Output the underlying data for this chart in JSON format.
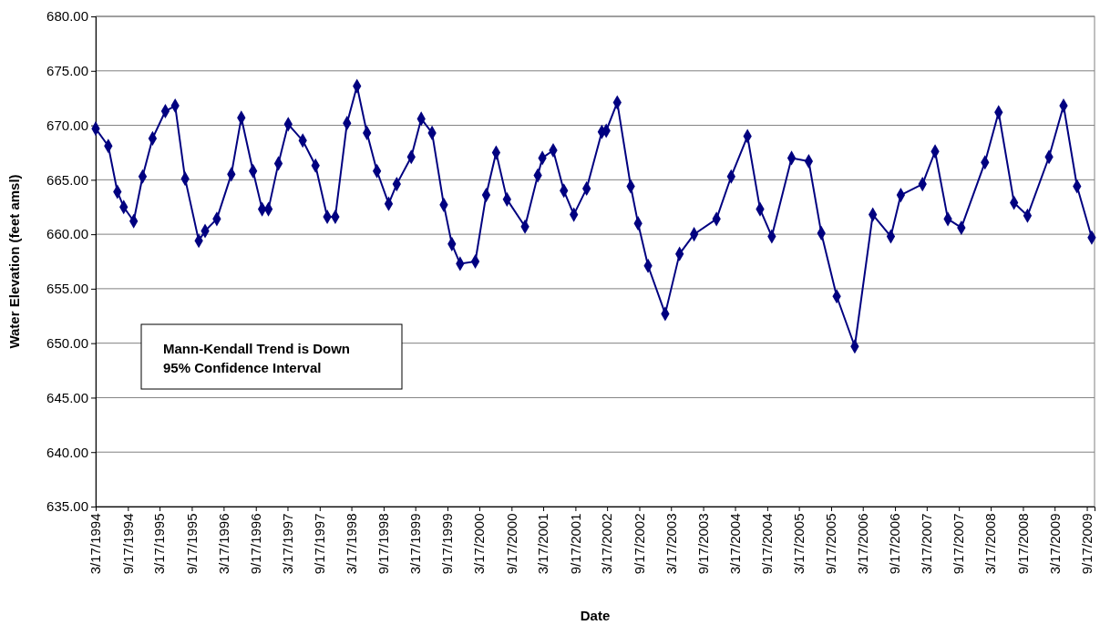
{
  "chart_data": {
    "type": "line",
    "xlabel": "Date",
    "ylabel": "Water Elevation (feet amsl)",
    "annotations": [
      "Mann-Kendall Trend is Down\n95% Confidence Interval"
    ],
    "x": [
      "1994-03-17",
      "1994-05-28",
      "1994-07-19",
      "1994-08-24",
      "1994-10-20",
      "1994-12-10",
      "1995-02-05",
      "1995-04-19",
      "1995-06-14",
      "1995-08-10",
      "1995-10-27",
      "1995-12-02",
      "1996-02-07",
      "1996-04-30",
      "1996-06-26",
      "1996-09-01",
      "1996-10-23",
      "1996-11-28",
      "1997-01-24",
      "1997-03-21",
      "1997-06-12",
      "1997-08-24",
      "1997-10-30",
      "1997-12-15",
      "1998-02-20",
      "1998-04-18",
      "1998-06-14",
      "1998-08-10",
      "1998-10-16",
      "1998-12-01",
      "1999-02-22",
      "1999-04-20",
      "1999-06-21",
      "1999-08-27",
      "1999-10-12",
      "1999-11-28",
      "2000-02-23",
      "2000-04-25",
      "2000-06-21",
      "2000-08-22",
      "2000-12-03",
      "2001-02-14",
      "2001-03-12",
      "2001-05-13",
      "2001-07-13",
      "2001-09-08",
      "2001-11-20",
      "2002-02-15",
      "2002-03-12",
      "2002-05-14",
      "2002-07-30",
      "2002-09-10",
      "2002-11-06",
      "2003-02-12",
      "2003-05-05",
      "2003-07-27",
      "2003-12-02",
      "2004-02-24",
      "2004-05-27",
      "2004-08-07",
      "2004-10-13",
      "2005-02-03",
      "2005-05-12",
      "2005-07-23",
      "2005-10-19",
      "2006-01-30",
      "2006-05-13",
      "2006-08-24",
      "2006-10-20",
      "2007-02-21",
      "2007-05-04",
      "2007-07-16",
      "2007-10-01",
      "2008-02-13",
      "2008-05-01",
      "2008-07-28",
      "2008-10-13",
      "2009-02-13",
      "2009-05-07",
      "2009-07-23",
      "2009-10-15"
    ],
    "series": [
      {
        "color": "#000080",
        "values": [
          669.7,
          668.1,
          663.9,
          662.5,
          661.2,
          665.3,
          668.8,
          671.3,
          671.8,
          665.1,
          659.4,
          660.3,
          661.4,
          665.5,
          670.7,
          665.8,
          662.3,
          662.3,
          666.5,
          670.1,
          668.6,
          666.3,
          661.6,
          661.6,
          670.2,
          673.6,
          669.3,
          665.8,
          662.8,
          664.6,
          667.1,
          670.6,
          669.3,
          662.7,
          659.1,
          657.3,
          657.5,
          663.6,
          667.5,
          663.2,
          660.7,
          665.4,
          667.0,
          667.7,
          664.0,
          661.8,
          664.2,
          669.4,
          669.5,
          672.1,
          664.4,
          661.0,
          657.1,
          652.7,
          658.2,
          660.0,
          661.4,
          665.3,
          669.0,
          662.3,
          659.8,
          667.0,
          666.7,
          660.1,
          654.3,
          649.7,
          661.8,
          659.8,
          663.6,
          664.6,
          667.6,
          661.4,
          660.6,
          666.6,
          671.2,
          662.9,
          661.7,
          667.1,
          671.8,
          664.4,
          659.7
        ]
      }
    ],
    "xlim": [
      "1994-03-17",
      "2009-10-31"
    ],
    "xticks": [
      {
        "value": "1994-03-17",
        "label": "3/17/1994"
      },
      {
        "value": "1994-09-17",
        "label": "9/17/1994"
      },
      {
        "value": "1995-03-17",
        "label": "3/17/1995"
      },
      {
        "value": "1995-09-17",
        "label": "9/17/1995"
      },
      {
        "value": "1996-03-17",
        "label": "3/17/1996"
      },
      {
        "value": "1996-09-17",
        "label": "9/17/1996"
      },
      {
        "value": "1997-03-17",
        "label": "3/17/1997"
      },
      {
        "value": "1997-09-17",
        "label": "9/17/1997"
      },
      {
        "value": "1998-03-17",
        "label": "3/17/1998"
      },
      {
        "value": "1998-09-17",
        "label": "9/17/1998"
      },
      {
        "value": "1999-03-17",
        "label": "3/17/1999"
      },
      {
        "value": "1999-09-17",
        "label": "9/17/1999"
      },
      {
        "value": "2000-03-17",
        "label": "3/17/2000"
      },
      {
        "value": "2000-09-17",
        "label": "9/17/2000"
      },
      {
        "value": "2001-03-17",
        "label": "3/17/2001"
      },
      {
        "value": "2001-09-17",
        "label": "9/17/2001"
      },
      {
        "value": "2002-03-17",
        "label": "3/17/2002"
      },
      {
        "value": "2002-09-17",
        "label": "9/17/2002"
      },
      {
        "value": "2003-03-17",
        "label": "3/17/2003"
      },
      {
        "value": "2003-09-17",
        "label": "9/17/2003"
      },
      {
        "value": "2004-03-17",
        "label": "3/17/2004"
      },
      {
        "value": "2004-09-17",
        "label": "9/17/2004"
      },
      {
        "value": "2005-03-17",
        "label": "3/17/2005"
      },
      {
        "value": "2005-09-17",
        "label": "9/17/2005"
      },
      {
        "value": "2006-03-17",
        "label": "3/17/2006"
      },
      {
        "value": "2006-09-17",
        "label": "9/17/2006"
      },
      {
        "value": "2007-03-17",
        "label": "3/17/2007"
      },
      {
        "value": "2007-09-17",
        "label": "9/17/2007"
      },
      {
        "value": "2008-03-17",
        "label": "3/17/2008"
      },
      {
        "value": "2008-09-17",
        "label": "9/17/2008"
      },
      {
        "value": "2009-03-17",
        "label": "3/17/2009"
      },
      {
        "value": "2009-09-17",
        "label": "9/17/2009"
      }
    ],
    "ylim": [
      635,
      680
    ],
    "yticks": [
      {
        "value": 635,
        "label": "635.00"
      },
      {
        "value": 640,
        "label": "640.00"
      },
      {
        "value": 645,
        "label": "645.00"
      },
      {
        "value": 650,
        "label": "650.00"
      },
      {
        "value": 655,
        "label": "655.00"
      },
      {
        "value": 660,
        "label": "660.00"
      },
      {
        "value": 665,
        "label": "665.00"
      },
      {
        "value": 670,
        "label": "670.00"
      },
      {
        "value": 675,
        "label": "675.00"
      },
      {
        "value": 680,
        "label": "680.00"
      }
    ],
    "grid": "y",
    "marker": "diamond",
    "line_style": "solid"
  }
}
